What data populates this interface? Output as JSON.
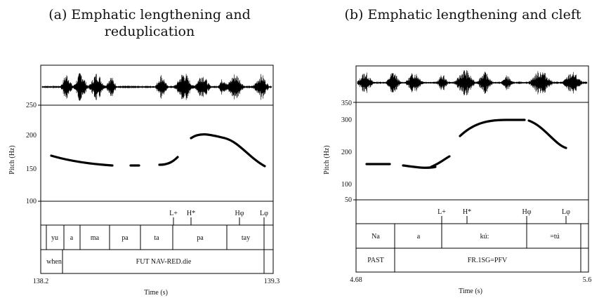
{
  "panels": [
    {
      "id": "a",
      "title_line1": "(a) Emphatic lengthening and",
      "title_line2": "reduplication",
      "y_label": "Pitch (Hz)",
      "y_ticks": [
        "250",
        "200",
        "150",
        "100"
      ],
      "x_label": "Time (s)",
      "x_start": "138.2",
      "x_end": "139.3",
      "tones": [
        "L+",
        "H*",
        "Hφ",
        "Lφ"
      ],
      "syllables": [
        "yu",
        "a",
        "ma",
        "pa",
        "ta",
        "pa",
        "tay"
      ],
      "gloss": [
        "when",
        "FUT NAV-RED.die"
      ]
    },
    {
      "id": "b",
      "title_line1": "(b) Emphatic lengthening and cleft",
      "title_line2": "",
      "y_label": "Pitch (Hz)",
      "y_ticks": [
        "350",
        "300",
        "200",
        "100",
        "50"
      ],
      "x_label": "Time (s)",
      "x_start": "4.68",
      "x_end": "5.6",
      "tones": [
        "L+",
        "H*",
        "Hφ",
        "Lφ"
      ],
      "syllables": [
        "Na",
        "a",
        "kú:",
        "=tú"
      ],
      "gloss": [
        "PAST",
        "FR.1SG=PFV"
      ]
    }
  ]
}
